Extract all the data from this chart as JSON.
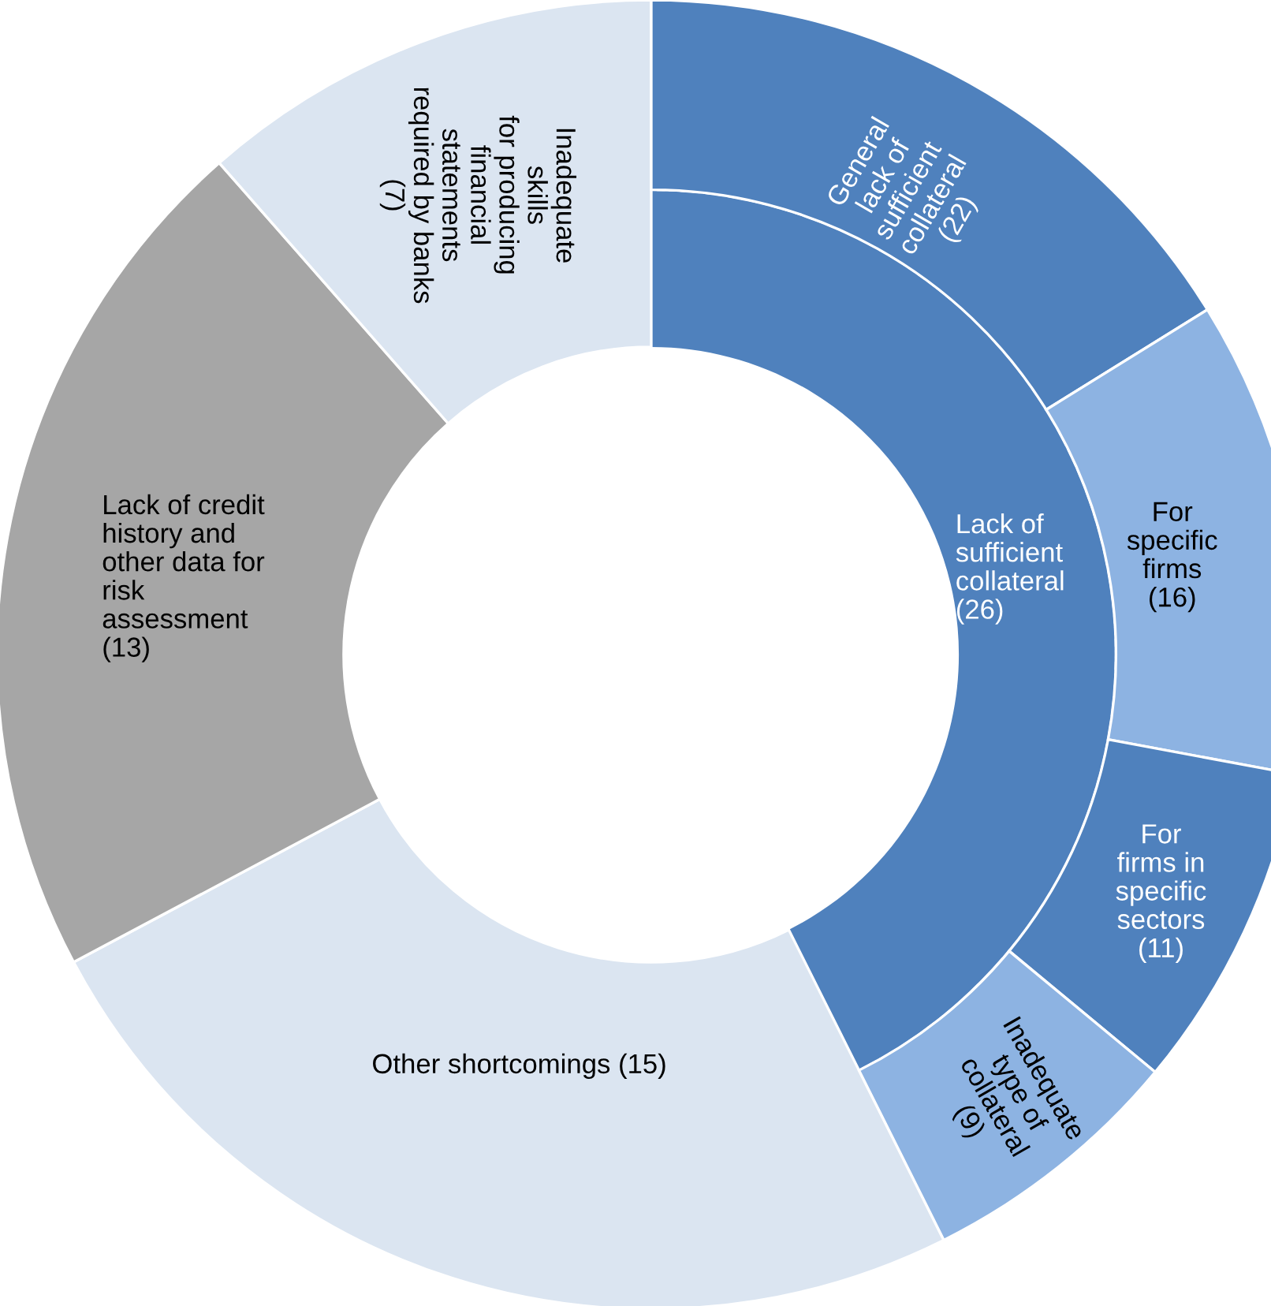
{
  "chart_data": [
    {
      "type": "other",
      "categories": [
        "Lack of\nsufficient\ncollateral",
        "Other shortcomings",
        "Lack of credit\nhistory and\nother data for\nrisk\nassessment",
        "Inadequate\nskills\nfor producing\nfinancial\nstatements\nrequired by banks"
      ],
      "values": [
        26,
        15,
        13,
        7
      ],
      "value_labels": [
        "(26)",
        "(15)",
        "(13)",
        "(7)"
      ],
      "colors": [
        "#4f81bd",
        "#dbe5f1",
        "#a6a6a6",
        "#dbe5f1"
      ]
    },
    {
      "type": "other",
      "categories": [
        "General\nlack of\nsufficient\ncollateral",
        "For\nspecific\nfirms",
        "For\nfirms in\nspecific\nsectors",
        "Inadequate\ntype of\ncollateral"
      ],
      "values": [
        22,
        16,
        11,
        9
      ],
      "value_labels": [
        "(22)",
        "(16)",
        "(11)",
        "(9)"
      ],
      "colors": [
        "#4f81bd",
        "#8db3e2",
        "#4f81bd",
        "#8db3e2"
      ]
    }
  ]
}
